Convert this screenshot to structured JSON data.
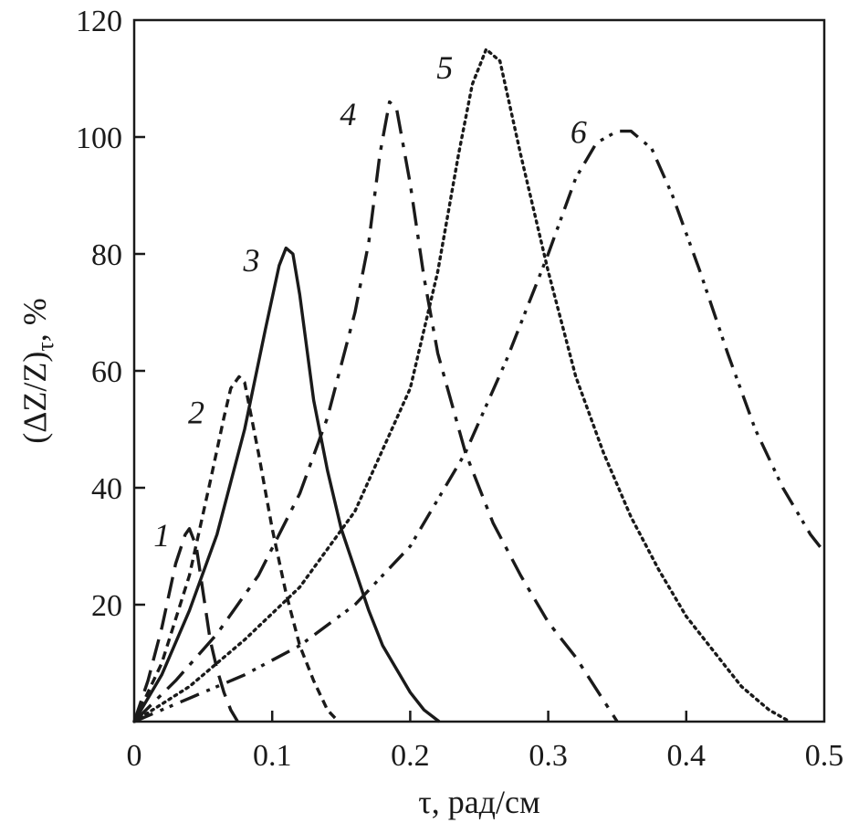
{
  "chart_data": {
    "type": "line",
    "title": "",
    "xlabel": "τ, рад/см",
    "ylabel": "(ΔZ/Z)τ, %",
    "ylabel_main": "(ΔZ/Z)",
    "ylabel_sub": "τ",
    "ylabel_tail": ", %",
    "xlim": [
      0,
      0.5
    ],
    "ylim": [
      0,
      120
    ],
    "grid": false,
    "x_ticks": [
      0,
      0.1,
      0.2,
      0.3,
      0.4,
      0.5
    ],
    "x_tick_labels": [
      "0",
      "0.1",
      "0.2",
      "0.3",
      "0.4",
      "0.5"
    ],
    "y_ticks": [
      20,
      40,
      60,
      80,
      100,
      120
    ],
    "y_tick_labels": [
      "20",
      "40",
      "60",
      "80",
      "100",
      "120"
    ],
    "series": [
      {
        "label": "1",
        "style": "long-dash",
        "x": [
          0.0,
          0.01,
          0.02,
          0.03,
          0.037,
          0.04,
          0.045,
          0.05,
          0.055,
          0.06,
          0.065,
          0.07,
          0.075
        ],
        "y": [
          0,
          7,
          16,
          27,
          32,
          33,
          30,
          22,
          14,
          9,
          5,
          2,
          0
        ]
      },
      {
        "label": "2",
        "style": "short-dash",
        "x": [
          0.0,
          0.02,
          0.04,
          0.055,
          0.065,
          0.07,
          0.076,
          0.08,
          0.09,
          0.1,
          0.11,
          0.12,
          0.13,
          0.14,
          0.148
        ],
        "y": [
          0,
          10,
          25,
          41,
          52,
          57,
          59,
          58,
          46,
          33,
          22,
          13,
          7,
          2,
          0
        ]
      },
      {
        "label": "3",
        "style": "solid",
        "x": [
          0.0,
          0.02,
          0.04,
          0.06,
          0.08,
          0.095,
          0.105,
          0.11,
          0.115,
          0.12,
          0.13,
          0.14,
          0.15,
          0.16,
          0.17,
          0.18,
          0.19,
          0.2,
          0.21,
          0.221
        ],
        "y": [
          0,
          8,
          19,
          32,
          50,
          67,
          78,
          81,
          80,
          73,
          55,
          43,
          33,
          26,
          19,
          13,
          9,
          5,
          2,
          0
        ]
      },
      {
        "label": "4",
        "style": "dash-dot",
        "x": [
          0.0,
          0.03,
          0.06,
          0.09,
          0.12,
          0.14,
          0.16,
          0.17,
          0.178,
          0.185,
          0.19,
          0.2,
          0.21,
          0.22,
          0.24,
          0.26,
          0.28,
          0.3,
          0.32,
          0.35
        ],
        "y": [
          0,
          7,
          15,
          25,
          39,
          52,
          70,
          82,
          97,
          106,
          105,
          92,
          76,
          63,
          46,
          34,
          25,
          17,
          11,
          0
        ]
      },
      {
        "label": "5",
        "style": "dotted",
        "x": [
          0.0,
          0.04,
          0.08,
          0.12,
          0.16,
          0.2,
          0.22,
          0.235,
          0.245,
          0.255,
          0.265,
          0.28,
          0.3,
          0.32,
          0.34,
          0.36,
          0.38,
          0.4,
          0.42,
          0.44,
          0.46,
          0.475
        ],
        "y": [
          0,
          6,
          14,
          23,
          36,
          57,
          77,
          97,
          109,
          115,
          113,
          97,
          77,
          59,
          46,
          35,
          26,
          18,
          12,
          6,
          2,
          0
        ]
      },
      {
        "label": "6",
        "style": "dash-dot-dot",
        "x": [
          0.0,
          0.04,
          0.08,
          0.12,
          0.16,
          0.2,
          0.24,
          0.27,
          0.3,
          0.32,
          0.335,
          0.35,
          0.36,
          0.375,
          0.39,
          0.41,
          0.43,
          0.45,
          0.47,
          0.49,
          0.5
        ],
        "y": [
          0,
          4,
          8,
          13,
          20,
          30,
          46,
          62,
          80,
          93,
          99,
          101,
          101,
          98,
          90,
          77,
          63,
          50,
          40,
          32,
          29
        ]
      }
    ],
    "curve_labels": [
      {
        "text": "1",
        "x": 0.02,
        "y": 30
      },
      {
        "text": "2",
        "x": 0.045,
        "y": 51
      },
      {
        "text": "3",
        "x": 0.085,
        "y": 77
      },
      {
        "text": "4",
        "x": 0.155,
        "y": 102
      },
      {
        "text": "5",
        "x": 0.225,
        "y": 110
      },
      {
        "text": "6",
        "x": 0.322,
        "y": 99
      }
    ]
  }
}
